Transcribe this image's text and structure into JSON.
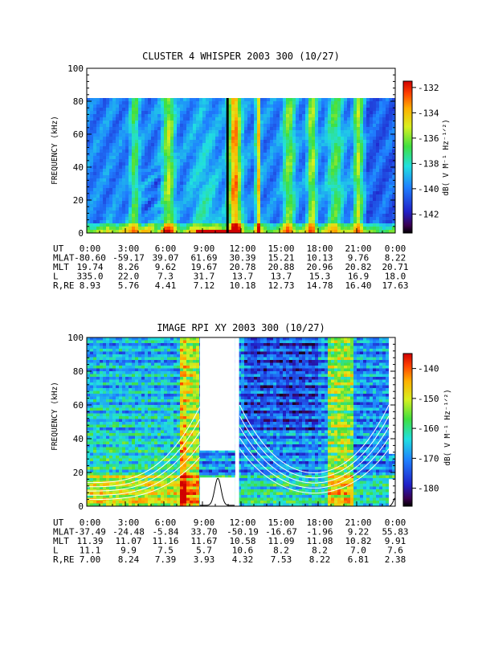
{
  "chart_data": [
    {
      "type": "heatmap",
      "title": "CLUSTER 4 WHISPER 2003 300 (10/27)",
      "ylabel": "FREQUENCY (kHz)",
      "ylim": [
        0,
        100
      ],
      "y_ticks": [
        "0",
        "20",
        "40",
        "60",
        "80",
        "100"
      ],
      "data_ymax": 80,
      "colorbar_label": "dB( V M⁻¹ Hz⁻¹ᐟ²)",
      "colorbar_range": [
        -143.5,
        -131.5
      ],
      "colorbar_ticks": [
        "-132",
        "-134",
        "-136",
        "-138",
        "-140",
        "-142"
      ],
      "x_time_ticks": [
        "0:00",
        "3:00",
        "6:00",
        "9:00",
        "12:00",
        "15:00",
        "18:00",
        "21:00",
        "0:00"
      ],
      "table": [
        {
          "label": "UT",
          "values": [
            "0:00",
            "3:00",
            "6:00",
            "9:00",
            "12:00",
            "15:00",
            "18:00",
            "21:00",
            "0:00"
          ]
        },
        {
          "label": "MLAT",
          "values": [
            "-80.60",
            "-59.17",
            "39.07",
            "61.69",
            "30.39",
            "15.21",
            "10.13",
            "9.76",
            "8.22"
          ]
        },
        {
          "label": "MLT",
          "values": [
            "19.74",
            "8.26",
            "9.62",
            "19.67",
            "20.78",
            "20.88",
            "20.96",
            "20.82",
            "20.71"
          ]
        },
        {
          "label": "L",
          "values": [
            "335.0",
            "22.0",
            "7.3",
            "31.7",
            "13.7",
            "13.7",
            "15.3",
            "16.9",
            "18.0"
          ]
        },
        {
          "label": "R,RE",
          "values": [
            "8.93",
            "5.76",
            "4.41",
            "7.12",
            "10.18",
            "12.73",
            "14.78",
            "16.40",
            "17.63"
          ]
        }
      ]
    },
    {
      "type": "heatmap",
      "title": "IMAGE RPI XY 2003 300 (10/27)",
      "ylabel": "FREQUENCY (kHz)",
      "ylim": [
        0,
        100
      ],
      "y_ticks": [
        "0",
        "20",
        "40",
        "60",
        "80",
        "100"
      ],
      "colorbar_label": "dB( V M⁻¹ Hz⁻¹ᐟ²)",
      "colorbar_range": [
        -186,
        -135
      ],
      "colorbar_ticks": [
        "-140",
        "-150",
        "-160",
        "-170",
        "-180"
      ],
      "x_time_ticks": [
        "0:00",
        "3:00",
        "6:00",
        "9:00",
        "12:00",
        "15:00",
        "18:00",
        "21:00",
        "0:00"
      ],
      "table": [
        {
          "label": "UT",
          "values": [
            "0:00",
            "3:00",
            "6:00",
            "9:00",
            "12:00",
            "15:00",
            "18:00",
            "21:00",
            "0:00"
          ]
        },
        {
          "label": "MLAT",
          "values": [
            "-37.49",
            "-24.48",
            "-5.84",
            "33.70",
            "-50.19",
            "-16.67",
            "-1.96",
            "9.22",
            "55.83"
          ]
        },
        {
          "label": "MLT",
          "values": [
            "11.39",
            "11.07",
            "11.16",
            "11.67",
            "10.58",
            "11.09",
            "11.08",
            "10.82",
            "9.91"
          ]
        },
        {
          "label": "L",
          "values": [
            "11.1",
            "9.9",
            "7.5",
            "5.7",
            "10.6",
            "8.2",
            "8.2",
            "7.0",
            "7.6"
          ]
        },
        {
          "label": "R,RE",
          "values": [
            "7.00",
            "8.24",
            "7.39",
            "3.93",
            "4.32",
            "7.53",
            "8.22",
            "6.81",
            "2.38"
          ]
        }
      ]
    }
  ],
  "colors": {
    "axis": "#000000",
    "background": "#ffffff"
  }
}
